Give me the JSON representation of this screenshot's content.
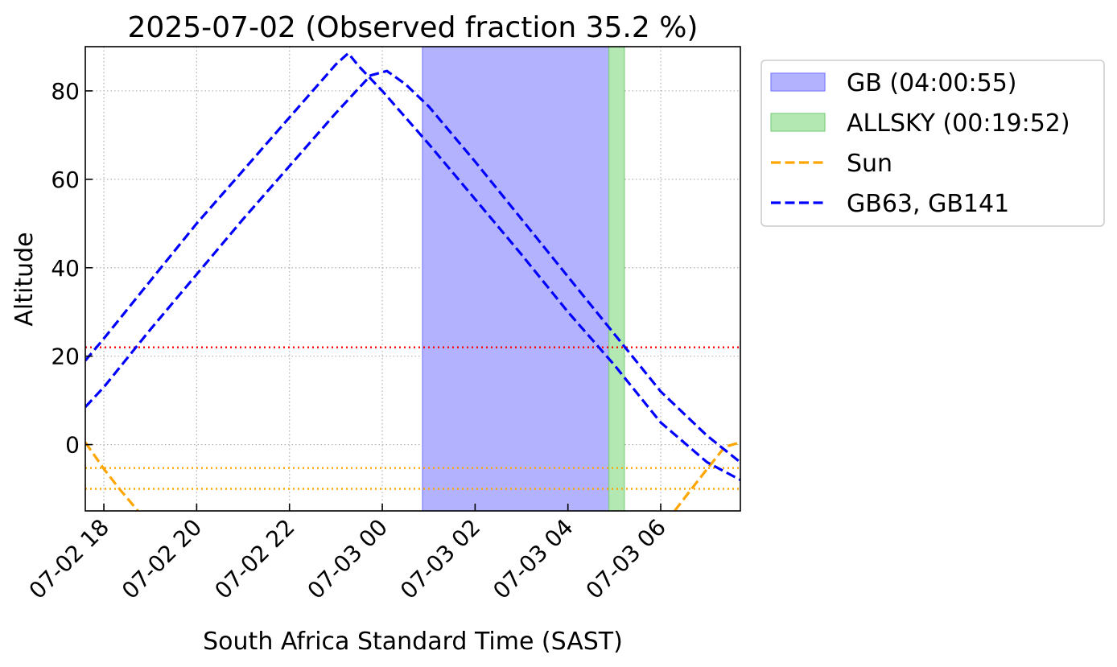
{
  "chart_data": {
    "type": "line",
    "title": "2025-07-02 (Observed fraction 35.2 %)",
    "xlabel": "South Africa Standard Time (SAST)",
    "ylabel": "Altitude",
    "xlim": [
      "2025-07-02 17:36",
      "2025-07-03 07:43"
    ],
    "ylim": [
      -15,
      90
    ],
    "x_tick_labels": [
      "07-02 18",
      "07-02 20",
      "07-02 22",
      "07-03 00",
      "07-03 02",
      "07-03 04",
      "07-03 06"
    ],
    "x_ticks": [
      "2025-07-02 18:00",
      "2025-07-02 20:00",
      "2025-07-02 22:00",
      "2025-07-03 00:00",
      "2025-07-03 02:00",
      "2025-07-03 04:00",
      "2025-07-03 06:00"
    ],
    "y_ticks": [
      0,
      20,
      40,
      60,
      80
    ],
    "grid": true,
    "legend_position": "outside-right",
    "spans": [
      {
        "label": "GB (04:00:55)",
        "start": "2025-07-03 00:52",
        "end": "2025-07-03 04:53",
        "color": "#b2b2ff"
      },
      {
        "label": "ALLSKY (00:19:52)",
        "start": "2025-07-03 04:53",
        "end": "2025-07-03 05:13",
        "color": "#b3e8b3"
      }
    ],
    "hlines": [
      {
        "y": 22,
        "color": "#ff0000",
        "style": "dotted"
      },
      {
        "y": -5.3,
        "color": "#ffa500",
        "style": "dotted"
      },
      {
        "y": -10,
        "color": "#ffa500",
        "style": "dotted"
      }
    ],
    "series": [
      {
        "name": "Sun",
        "color": "#ffa500",
        "style": "dashed",
        "segments": [
          [
            [
              "2025-07-02 17:36",
              0.5
            ],
            [
              "2025-07-02 18:00",
              -5.5
            ],
            [
              "2025-07-02 18:20",
              -10
            ],
            [
              "2025-07-02 18:44",
              -15
            ]
          ],
          [
            [
              "2025-07-03 06:18",
              -15
            ],
            [
              "2025-07-03 06:40",
              -10
            ],
            [
              "2025-07-03 07:00",
              -5.5
            ],
            [
              "2025-07-03 07:23",
              -0.5
            ],
            [
              "2025-07-03 07:43",
              0.5
            ]
          ]
        ]
      },
      {
        "name": "GB63, GB141",
        "color": "#0000ff",
        "style": "dashed",
        "segments": [
          [
            [
              "2025-07-02 17:36",
              19
            ],
            [
              "2025-07-02 18:00",
              24
            ],
            [
              "2025-07-02 19:00",
              37
            ],
            [
              "2025-07-02 20:00",
              50
            ],
            [
              "2025-07-02 21:00",
              62
            ],
            [
              "2025-07-02 22:00",
              74
            ],
            [
              "2025-07-02 23:00",
              86
            ],
            [
              "2025-07-02 23:16",
              88.5
            ],
            [
              "2025-07-02 23:30",
              85.5
            ],
            [
              "2025-07-03 00:00",
              80
            ],
            [
              "2025-07-03 01:00",
              68
            ],
            [
              "2025-07-03 02:00",
              55.5
            ],
            [
              "2025-07-03 03:00",
              43
            ],
            [
              "2025-07-03 04:00",
              30
            ],
            [
              "2025-07-03 05:00",
              18
            ],
            [
              "2025-07-03 06:00",
              5
            ],
            [
              "2025-07-03 07:00",
              -4
            ],
            [
              "2025-07-03 07:43",
              -8
            ]
          ],
          [
            [
              "2025-07-02 17:36",
              8.5
            ],
            [
              "2025-07-02 18:00",
              13
            ],
            [
              "2025-07-02 19:00",
              26
            ],
            [
              "2025-07-02 20:00",
              38.5
            ],
            [
              "2025-07-02 21:00",
              51
            ],
            [
              "2025-07-02 22:00",
              63
            ],
            [
              "2025-07-02 23:00",
              75
            ],
            [
              "2025-07-02 23:45",
              83.5
            ],
            [
              "2025-07-03 00:06",
              84.5
            ],
            [
              "2025-07-03 00:30",
              81.5
            ],
            [
              "2025-07-03 01:00",
              76.5
            ],
            [
              "2025-07-03 02:00",
              64
            ],
            [
              "2025-07-03 03:00",
              51
            ],
            [
              "2025-07-03 04:00",
              38
            ],
            [
              "2025-07-03 05:00",
              25
            ],
            [
              "2025-07-03 06:00",
              12
            ],
            [
              "2025-07-03 07:00",
              2
            ],
            [
              "2025-07-03 07:43",
              -4
            ]
          ]
        ]
      }
    ],
    "legend": [
      {
        "label": "GB (04:00:55)",
        "kind": "patch",
        "color": "#b2b2ff",
        "edge": "#7f7fff"
      },
      {
        "label": "ALLSKY (00:19:52)",
        "kind": "patch",
        "color": "#b3e8b3",
        "edge": "#80d080"
      },
      {
        "label": "Sun",
        "kind": "line",
        "color": "#ffa500"
      },
      {
        "label": "GB63, GB141",
        "kind": "line",
        "color": "#0000ff"
      }
    ]
  }
}
